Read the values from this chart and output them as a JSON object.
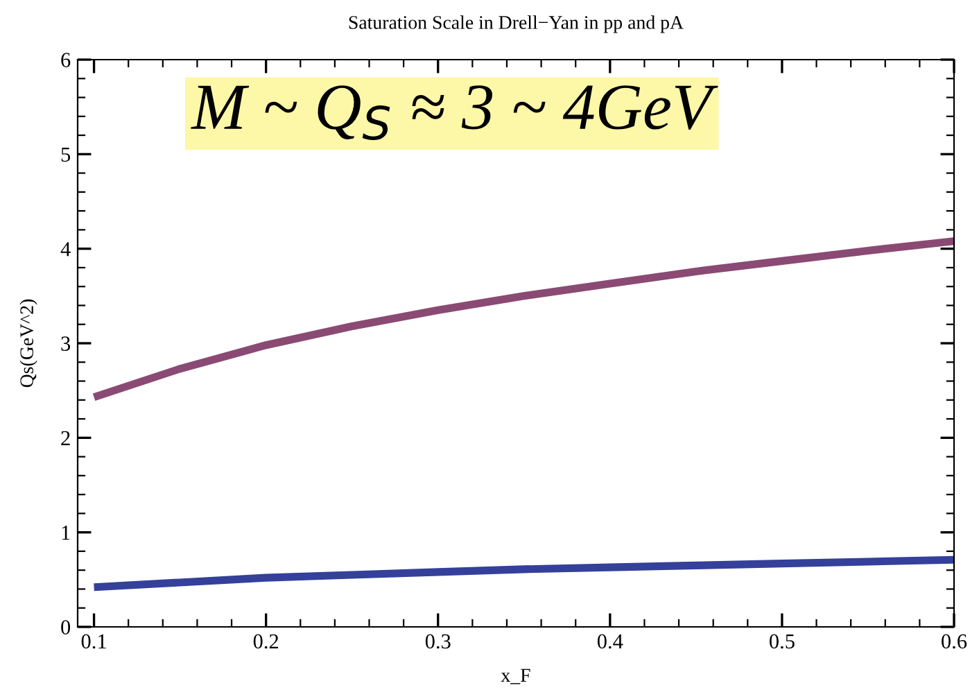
{
  "chart_data": {
    "type": "line",
    "title": "Saturation Scale in Drell−Yan in pp and pA",
    "xlabel": "x_F",
    "ylabel": "Qs(GeV^2)",
    "x": [
      0.1,
      0.15,
      0.2,
      0.25,
      0.3,
      0.35,
      0.4,
      0.45,
      0.5,
      0.55,
      0.6
    ],
    "series": [
      {
        "color": "#8a4a74",
        "values": [
          2.43,
          2.73,
          2.98,
          3.18,
          3.35,
          3.5,
          3.63,
          3.76,
          3.87,
          3.98,
          4.08
        ]
      },
      {
        "color": "#34409a",
        "values": [
          0.42,
          0.47,
          0.52,
          0.55,
          0.58,
          0.61,
          0.63,
          0.65,
          0.67,
          0.69,
          0.71
        ]
      }
    ],
    "xlim": [
      0.0905,
      0.6
    ],
    "ylim": [
      0,
      6
    ],
    "xticks": [
      0.1,
      0.2,
      0.3,
      0.4,
      0.5,
      0.6
    ],
    "yticks": [
      0,
      1,
      2,
      3,
      4,
      5,
      6
    ],
    "grid": false,
    "legend": false,
    "marker": "none",
    "line_style": "solid",
    "annotations": [
      "M ~ Q$_{S}$ ≈ 3 ~ 4GeV"
    ]
  }
}
